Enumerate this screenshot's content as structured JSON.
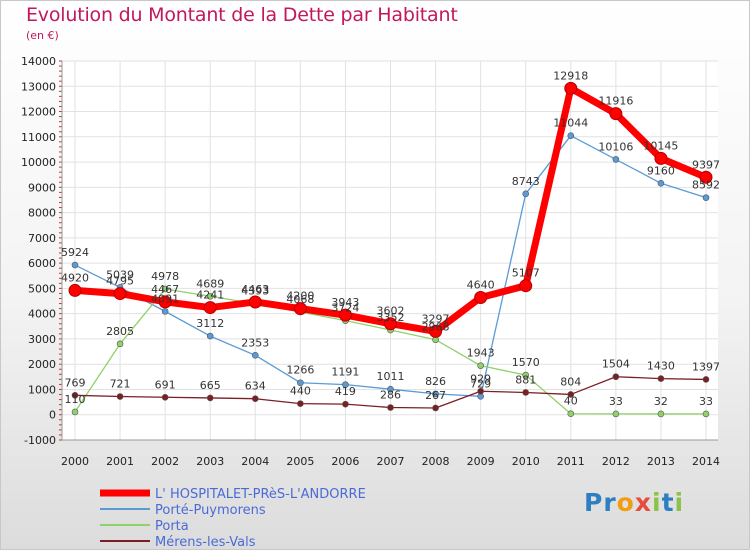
{
  "chart_data": {
    "type": "line",
    "title": "Evolution du Montant de la Dette par Habitant",
    "unit_label": "(en €)",
    "x": [
      "2000",
      "2001",
      "2002",
      "2003",
      "2004",
      "2005",
      "2006",
      "2007",
      "2008",
      "2009",
      "2010",
      "2011",
      "2012",
      "2013",
      "2014"
    ],
    "ylim": [
      -1000,
      14000
    ],
    "yticks": [
      "14000",
      "13000",
      "12000",
      "11000",
      "10000",
      "9000",
      "8000",
      "7000",
      "6000",
      "5000",
      "4000",
      "3000",
      "2000",
      "1000",
      "0",
      "-1000"
    ],
    "grid": true,
    "legend_position": "bottom-left",
    "series": [
      {
        "name": "Porté-Puymorens",
        "color": "#5b9bd5",
        "values": [
          5924,
          5039,
          4091,
          3112,
          2353,
          1266,
          1191,
          1011,
          826,
          729,
          8743,
          11044,
          10106,
          9160,
          8592
        ],
        "labels": [
          "5924",
          "5039",
          "4091",
          "3112",
          "2353",
          "1266",
          "1191",
          "1011",
          "826",
          "729",
          "8743",
          "11044",
          "10106",
          "9160",
          "8592"
        ]
      },
      {
        "name": "Porta",
        "color": "#8fd16a",
        "values": [
          110,
          2805,
          4978,
          4689,
          4393,
          4068,
          3724,
          3352,
          2968,
          1943,
          1570,
          40,
          33,
          32,
          33
        ],
        "labels": [
          "110",
          "2805",
          "4978",
          "4689",
          "4393",
          "4068",
          "3724",
          "3352",
          "2968",
          "1943",
          "1570",
          "40",
          "33",
          "32",
          "33"
        ]
      },
      {
        "name": "Mérens-les-Vals",
        "color": "#7b1f24",
        "values": [
          769,
          721,
          691,
          665,
          634,
          440,
          419,
          286,
          267,
          929,
          881,
          804,
          1504,
          1430,
          1397
        ],
        "labels": [
          "769",
          "721",
          "691",
          "665",
          "634",
          "440",
          "419",
          "286",
          "267",
          "929",
          "881",
          "804",
          "1504",
          "1430",
          "1397"
        ]
      },
      {
        "name": "L' HOSPITALET-PRèS-L'ANDORRE",
        "color": "#ff0000",
        "values": [
          4920,
          4795,
          4467,
          4241,
          4463,
          4200,
          3943,
          3602,
          3297,
          4640,
          5107,
          12918,
          11916,
          10145,
          9397
        ],
        "labels": [
          "4920",
          "4795",
          "4467",
          "4241",
          "4463",
          "4200",
          "3943",
          "3602",
          "3297",
          "4640",
          "5107",
          "12918",
          "11916",
          "10145",
          "9397"
        ]
      }
    ],
    "legend": [
      "L' HOSPITALET-PRèS-L'ANDORRE",
      "Porté-Puymorens",
      "Porta",
      "Mérens-les-Vals"
    ]
  },
  "logo": {
    "text": "Proxiti",
    "colors": [
      "#2e7fc1",
      "#2e7fc1",
      "#f39c12",
      "#e74c3c",
      "#8bc34a",
      "#2e7fc1",
      "#8bc34a"
    ]
  }
}
